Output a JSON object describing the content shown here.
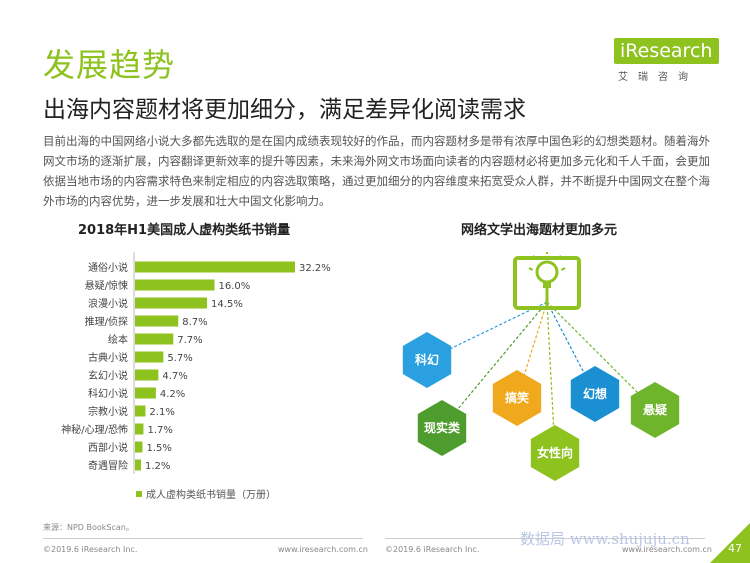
{
  "header": {
    "section_title": "发展趋势",
    "subtitle": "出海内容题材将更加细分，满足差异化阅读需求",
    "paragraph": "目前出海的中国网络小说大多都先选取的是在国内成绩表现较好的作品，而内容题材多是带有浓厚中国色彩的幻想类题材。随着海外网文市场的逐渐扩展，内容翻译更新效率的提升等因素，未来海外网文市场面向读者的内容题材必将更加多元化和千人千面，会更加依据当地市场的内容需求特色来制定相应的内容选取策略，通过更加细分的内容维度来拓宽受众人群，并不断提升中国网文在整个海外市场的内容优势，进一步发展和壮大中国文化影响力。"
  },
  "logo": {
    "main": "iResearch",
    "sub": "艾瑞咨询"
  },
  "chart_data": {
    "type": "bar",
    "orientation": "horizontal",
    "title": "2018年H1美国成人虚构类纸书销量",
    "categories": [
      "通俗小说",
      "悬疑/惊悚",
      "浪漫小说",
      "推理/侦探",
      "绘本",
      "古典小说",
      "玄幻小说",
      "科幻小说",
      "宗教小说",
      "神秘/心理/恐怖",
      "西部小说",
      "奇遇冒险"
    ],
    "values": [
      32.2,
      16.0,
      14.5,
      8.7,
      7.7,
      5.7,
      4.7,
      4.2,
      2.1,
      1.7,
      1.5,
      1.2
    ],
    "value_labels": [
      "32.2%",
      "16.0%",
      "14.5%",
      "8.7%",
      "7.7%",
      "5.7%",
      "4.7%",
      "4.2%",
      "2.1%",
      "1.7%",
      "1.5%",
      "1.2%"
    ],
    "series": [
      {
        "name": "成人虚构类纸书销量（万册）",
        "color": "#8dc21f"
      }
    ],
    "legend_position": "bottom-left",
    "grid": false
  },
  "diagram": {
    "title": "网络文学出海题材更加多元",
    "icon": "book-lightbulb-icon",
    "nodes": [
      {
        "label": "科幻",
        "color": "#2aa0e0",
        "line_color": "#2aa0e0"
      },
      {
        "label": "现实类",
        "color": "#4f9c2e",
        "line_color": "#4f9c2e"
      },
      {
        "label": "搞笑",
        "color": "#f0a81c",
        "line_color": "#f0a81c"
      },
      {
        "label": "女性向",
        "color": "#8dc21f",
        "line_color": "#8dc21f"
      },
      {
        "label": "幻想",
        "color": "#1a8fd1",
        "line_color": "#1a8fd1"
      },
      {
        "label": "悬疑",
        "color": "#6fb52c",
        "line_color": "#6fb52c"
      }
    ]
  },
  "footer": {
    "source": "来源：NPD BookScan。",
    "copyright_left": "©2019.6 iResearch Inc.",
    "url_left": "www.iresearch.com.cn",
    "copyright_right": "©2019.6 iResearch Inc.",
    "url_right": "www.iresearch.com.cn",
    "watermark": "数据局 www.shujuju.cn",
    "page_number": "47"
  }
}
